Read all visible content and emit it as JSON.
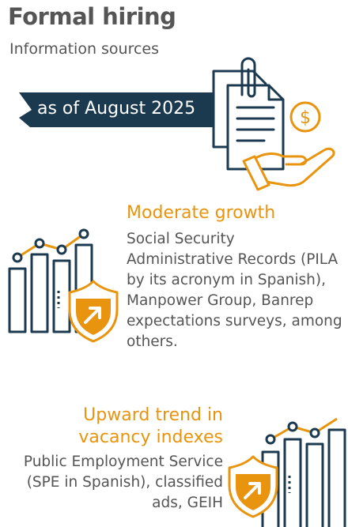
{
  "title": "Formal hiring",
  "subtitle": "Information sources",
  "banner": {
    "text": "as of August 2025"
  },
  "sections": [
    {
      "heading": "Moderate growth",
      "body": "Social Security Administrative Records (PILA by its acronym in Spanish), Manpower Group, Banrep expectations surveys, among others."
    },
    {
      "heading_line1": "Upward trend in",
      "heading_line2": "vacancy indexes",
      "body": "Public Employment Service (SPE in Spanish), classified ads, GEIH"
    }
  ],
  "icons": {
    "contract": "contract-hand-coin-icon",
    "growth": "bar-chart-shield-icon",
    "trend": "bar-chart-shield-icon"
  },
  "colors": {
    "accent": "#e8940e",
    "dark": "#1c3a4f",
    "text": "#555555"
  }
}
